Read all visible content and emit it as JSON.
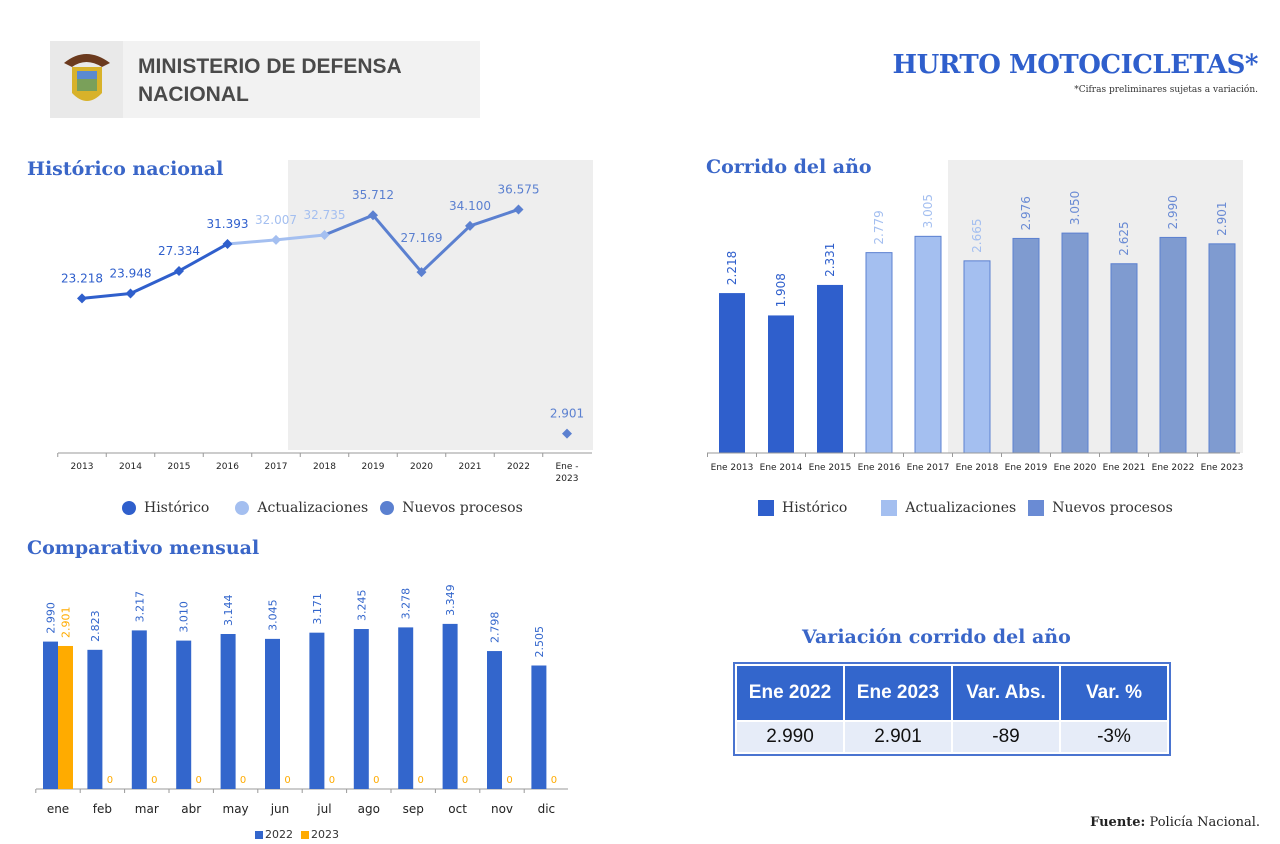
{
  "header": {
    "org_name": "MINISTERIO DE DEFENSA NACIONAL",
    "title": "HURTO MOTOCICLETAS*",
    "note": "*Cifras preliminares sujetas a variación."
  },
  "legend": {
    "historico": "Histórico",
    "actualizaciones": "Actualizaciones",
    "nuevos": "Nuevos procesos",
    "y2022": "2022",
    "y2023": "2023"
  },
  "colors": {
    "historico": "#2f5fcc",
    "actualizaciones": "#a4bff0",
    "nuevos": "#5b80d0",
    "nuevos_bar": "#7f9bd0",
    "y2022": "#3366cc",
    "y2023": "#ffab00"
  },
  "chart_data": [
    {
      "type": "line",
      "title": "Histórico nacional",
      "categories": [
        "2013",
        "2014",
        "2015",
        "2016",
        "2017",
        "2018",
        "2019",
        "2020",
        "2021",
        "2022",
        "Ene - 2023"
      ],
      "values": [
        23218,
        23948,
        27334,
        31393,
        32007,
        32735,
        35712,
        27169,
        34100,
        36575,
        2901
      ],
      "labels": [
        "23.218",
        "23.948",
        "27.334",
        "31.393",
        "32.007",
        "32.735",
        "35.712",
        "27.169",
        "34.100",
        "36.575",
        "2.901"
      ],
      "series_of_point": [
        "historico",
        "historico",
        "historico",
        "historico",
        "actualizaciones",
        "actualizaciones",
        "nuevos",
        "nuevos",
        "nuevos",
        "nuevos",
        "nuevos"
      ],
      "ylim": [
        0,
        44000
      ],
      "legend": "bottom"
    },
    {
      "type": "bar",
      "title": "Corrido del año",
      "categories": [
        "Ene 2013",
        "Ene 2014",
        "Ene 2015",
        "Ene 2016",
        "Ene 2017",
        "Ene 2018",
        "Ene 2019",
        "Ene 2020",
        "Ene 2021",
        "Ene 2022",
        "Ene 2023"
      ],
      "values": [
        2218,
        1908,
        2331,
        2779,
        3005,
        2665,
        2976,
        3050,
        2625,
        2990,
        2901
      ],
      "labels": [
        "2.218",
        "1.908",
        "2.331",
        "2.779",
        "3.005",
        "2.665",
        "2.976",
        "3.050",
        "2.625",
        "2.990",
        "2.901"
      ],
      "series_of_point": [
        "historico",
        "historico",
        "historico",
        "actualizaciones",
        "actualizaciones",
        "actualizaciones",
        "nuevos",
        "nuevos",
        "nuevos",
        "nuevos",
        "nuevos"
      ],
      "ylim": [
        0,
        4200
      ],
      "legend": "bottom"
    },
    {
      "type": "bar",
      "title": "Comparativo mensual",
      "categories": [
        "ene",
        "feb",
        "mar",
        "abr",
        "may",
        "jun",
        "jul",
        "ago",
        "sep",
        "oct",
        "nov",
        "dic"
      ],
      "series": [
        {
          "name": "2022",
          "values": [
            2990,
            2823,
            3217,
            3010,
            3144,
            3045,
            3171,
            3245,
            3278,
            3349,
            2798,
            2505
          ],
          "labels": [
            "2.990",
            "2.823",
            "3.217",
            "3.010",
            "3.144",
            "3.045",
            "3.171",
            "3.245",
            "3.278",
            "3.349",
            "2.798",
            "2.505"
          ]
        },
        {
          "name": "2023",
          "values": [
            2901,
            0,
            0,
            0,
            0,
            0,
            0,
            0,
            0,
            0,
            0,
            0
          ],
          "labels": [
            "2.901",
            "0",
            "0",
            "0",
            "0",
            "0",
            "0",
            "0",
            "0",
            "0",
            "0",
            "0"
          ]
        }
      ],
      "ylim": [
        0,
        4500
      ],
      "legend": "bottom"
    }
  ],
  "variacion": {
    "title": "Variación corrido del año",
    "headers": [
      "Ene 2022",
      "Ene 2023",
      "Var. Abs.",
      "Var. %"
    ],
    "values": [
      "2.990",
      "2.901",
      "-89",
      "-3%"
    ]
  },
  "source": {
    "label": "Fuente:",
    "value": "Policía Nacional."
  }
}
